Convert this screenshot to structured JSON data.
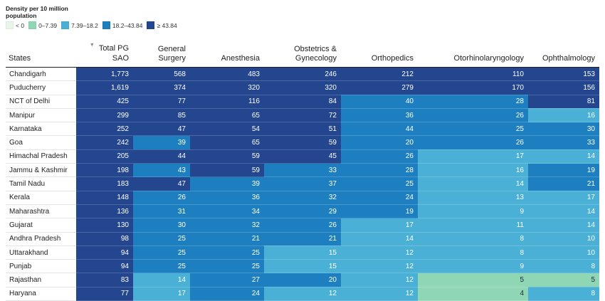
{
  "legend": {
    "title": "Density per 10 million population",
    "items": [
      {
        "label": "< 0",
        "color": "#e8f6e9"
      },
      {
        "label": "0–7.39",
        "color": "#8fd6b5"
      },
      {
        "label": "7.39–18.2",
        "color": "#4bb0d6"
      },
      {
        "label": "18.2–43.84",
        "color": "#1d7fc0"
      },
      {
        "label": "≥ 43.84",
        "color": "#23468f"
      }
    ]
  },
  "colors": {
    "c0": "#e8f6e9",
    "c1": "#8fd6b5",
    "c2": "#4bb0d6",
    "c3": "#1d7fc0",
    "c4": "#23468f"
  },
  "chart_data": {
    "type": "table",
    "title": "",
    "sort_indicator": "▼",
    "columns": [
      "States",
      "Total PG SAO",
      "General Surgery",
      "Anesthesia",
      "Obstetrics & Gynecology",
      "Orthopedics",
      "Otorhinolaryngology",
      "Ophthalmology"
    ],
    "rows": [
      {
        "state": "Chandigarh",
        "values": [
          "1,773",
          "568",
          "483",
          "246",
          "212",
          "110",
          "153"
        ],
        "colors": [
          "c4",
          "c4",
          "c4",
          "c4",
          "c4",
          "c4",
          "c4"
        ]
      },
      {
        "state": "Puducherry",
        "values": [
          "1,619",
          "374",
          "320",
          "320",
          "279",
          "170",
          "156"
        ],
        "colors": [
          "c4",
          "c4",
          "c4",
          "c4",
          "c4",
          "c4",
          "c4"
        ]
      },
      {
        "state": "NCT of Delhi",
        "values": [
          "425",
          "77",
          "116",
          "84",
          "40",
          "28",
          "81"
        ],
        "colors": [
          "c4",
          "c4",
          "c4",
          "c4",
          "c3",
          "c3",
          "c4"
        ]
      },
      {
        "state": "Manipur",
        "values": [
          "299",
          "85",
          "65",
          "72",
          "36",
          "26",
          "16"
        ],
        "colors": [
          "c4",
          "c4",
          "c4",
          "c4",
          "c3",
          "c3",
          "c2"
        ]
      },
      {
        "state": "Karnataka",
        "values": [
          "252",
          "47",
          "54",
          "51",
          "44",
          "25",
          "30"
        ],
        "colors": [
          "c4",
          "c4",
          "c4",
          "c4",
          "c3",
          "c3",
          "c3"
        ]
      },
      {
        "state": "Goa",
        "values": [
          "242",
          "39",
          "65",
          "59",
          "20",
          "26",
          "33"
        ],
        "colors": [
          "c4",
          "c3",
          "c4",
          "c4",
          "c3",
          "c3",
          "c3"
        ]
      },
      {
        "state": "Himachal Pradesh",
        "values": [
          "205",
          "44",
          "59",
          "45",
          "26",
          "17",
          "14"
        ],
        "colors": [
          "c4",
          "c4",
          "c4",
          "c4",
          "c3",
          "c2",
          "c2"
        ]
      },
      {
        "state": "Jammu & Kashmir",
        "values": [
          "198",
          "43",
          "59",
          "33",
          "28",
          "16",
          "19"
        ],
        "colors": [
          "c4",
          "c3",
          "c4",
          "c3",
          "c3",
          "c2",
          "c3"
        ]
      },
      {
        "state": "Tamil Nadu",
        "values": [
          "183",
          "47",
          "39",
          "37",
          "25",
          "14",
          "21"
        ],
        "colors": [
          "c4",
          "c4",
          "c3",
          "c3",
          "c3",
          "c2",
          "c3"
        ]
      },
      {
        "state": "Kerala",
        "values": [
          "148",
          "26",
          "36",
          "32",
          "24",
          "13",
          "17"
        ],
        "colors": [
          "c4",
          "c3",
          "c3",
          "c3",
          "c3",
          "c2",
          "c2"
        ]
      },
      {
        "state": "Maharashtra",
        "values": [
          "136",
          "31",
          "34",
          "29",
          "19",
          "9",
          "14"
        ],
        "colors": [
          "c4",
          "c3",
          "c3",
          "c3",
          "c3",
          "c2",
          "c2"
        ]
      },
      {
        "state": "Gujarat",
        "values": [
          "130",
          "30",
          "32",
          "26",
          "17",
          "11",
          "14"
        ],
        "colors": [
          "c4",
          "c3",
          "c3",
          "c3",
          "c2",
          "c2",
          "c2"
        ]
      },
      {
        "state": "Andhra Pradesh",
        "values": [
          "98",
          "25",
          "21",
          "21",
          "14",
          "8",
          "10"
        ],
        "colors": [
          "c4",
          "c3",
          "c3",
          "c3",
          "c2",
          "c2",
          "c2"
        ]
      },
      {
        "state": "Uttarakhand",
        "values": [
          "94",
          "25",
          "25",
          "15",
          "12",
          "8",
          "10"
        ],
        "colors": [
          "c4",
          "c3",
          "c3",
          "c2",
          "c2",
          "c2",
          "c2"
        ]
      },
      {
        "state": "Punjab",
        "values": [
          "94",
          "25",
          "25",
          "15",
          "12",
          "9",
          "8"
        ],
        "colors": [
          "c4",
          "c3",
          "c3",
          "c2",
          "c2",
          "c2",
          "c2"
        ]
      },
      {
        "state": "Rajasthan",
        "values": [
          "83",
          "14",
          "27",
          "20",
          "12",
          "5",
          "5"
        ],
        "colors": [
          "c4",
          "c2",
          "c3",
          "c3",
          "c2",
          "c1",
          "c1"
        ]
      },
      {
        "state": "Haryana",
        "values": [
          "77",
          "17",
          "24",
          "12",
          "12",
          "4",
          "8"
        ],
        "colors": [
          "c4",
          "c2",
          "c3",
          "c2",
          "c2",
          "c1",
          "c2"
        ]
      }
    ]
  }
}
